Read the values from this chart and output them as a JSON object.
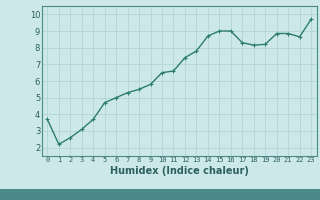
{
  "x": [
    0,
    1,
    2,
    3,
    4,
    5,
    6,
    7,
    8,
    9,
    10,
    11,
    12,
    13,
    14,
    15,
    16,
    17,
    18,
    19,
    20,
    21,
    22,
    23
  ],
  "y": [
    3.7,
    2.2,
    2.6,
    3.1,
    3.7,
    4.7,
    5.0,
    5.3,
    5.5,
    5.8,
    6.5,
    6.6,
    7.4,
    7.8,
    8.7,
    9.0,
    9.0,
    8.3,
    8.15,
    8.2,
    8.85,
    8.85,
    8.65,
    9.7
  ],
  "line_color": "#2d7d6e",
  "marker": "+",
  "marker_size": 3,
  "linewidth": 1.0,
  "xlabel": "Humidex (Indice chaleur)",
  "xlim": [
    -0.5,
    23.5
  ],
  "ylim": [
    1.5,
    10.5
  ],
  "yticks": [
    2,
    3,
    4,
    5,
    6,
    7,
    8,
    9,
    10
  ],
  "xticks": [
    0,
    1,
    2,
    3,
    4,
    5,
    6,
    7,
    8,
    9,
    10,
    11,
    12,
    13,
    14,
    15,
    16,
    17,
    18,
    19,
    20,
    21,
    22,
    23
  ],
  "grid_color": "#b8d8d8",
  "bg_color": "#cce8e8",
  "bottom_bar_color": "#4a8a8a",
  "text_color": "#2d6060",
  "axis_color": "#4a8a8a"
}
